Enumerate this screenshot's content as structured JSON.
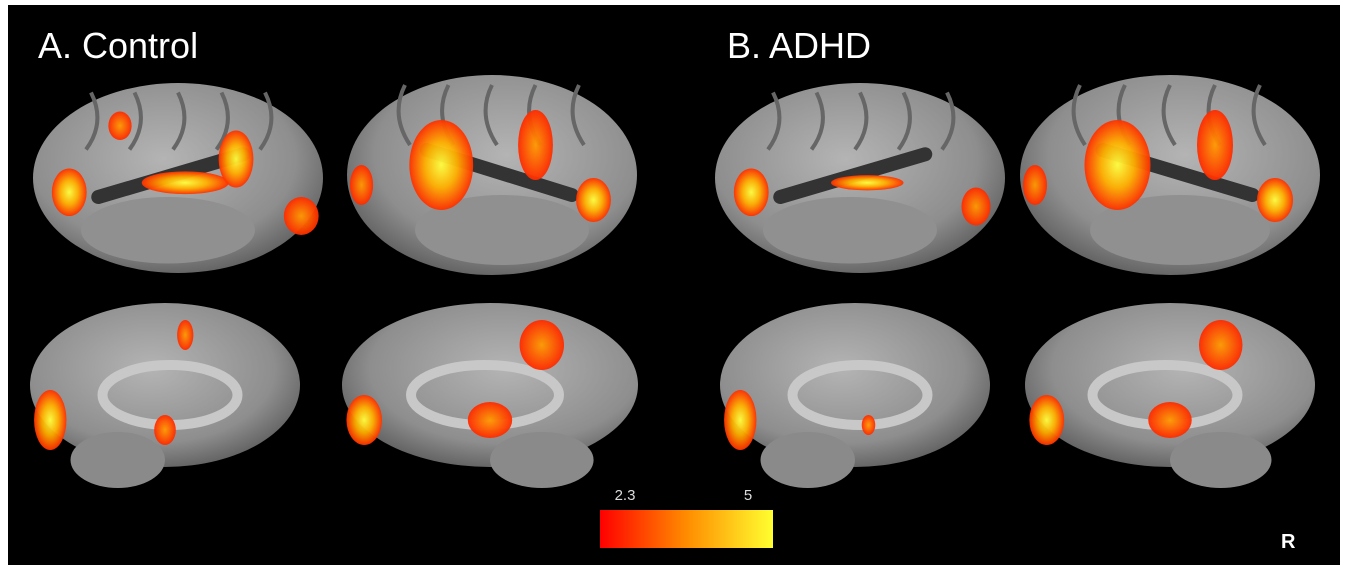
{
  "panels": [
    {
      "label": "A. Control"
    },
    {
      "label": "B. ADHD"
    }
  ],
  "colorbar": {
    "ticks": [
      2.3,
      5
    ]
  },
  "hemisphere_label": "R"
}
